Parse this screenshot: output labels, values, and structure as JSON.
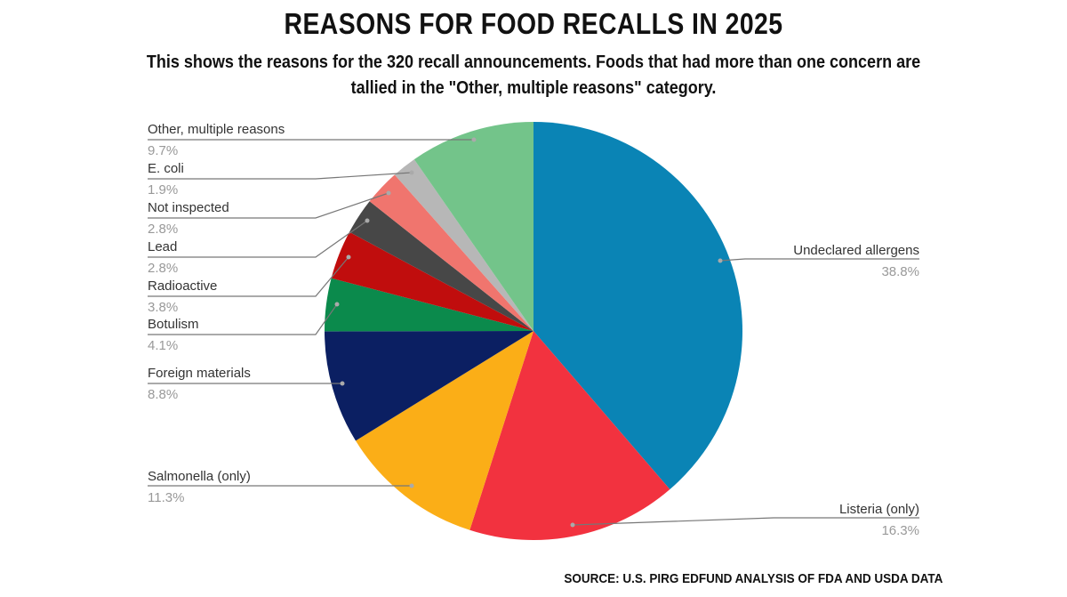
{
  "chart_data": {
    "type": "pie",
    "title": "REASONS FOR FOOD RECALLS IN 2025",
    "subtitle": "This shows the reasons for the 320 recall announcements. Foods that had more than one concern are tallied in the \"Other, multiple reasons\" category.",
    "source": "SOURCE: U.S. PIRG EDFUND ANALYSIS OF FDA AND USDA DATA",
    "start_angle": "top, clockwise",
    "slices": [
      {
        "label": "Undeclared allergens",
        "value": 38.8,
        "pct_label": "38.8%",
        "color": "#0a84b5"
      },
      {
        "label": "Listeria (only)",
        "value": 16.3,
        "pct_label": "16.3%",
        "color": "#f2323f"
      },
      {
        "label": "Salmonella (only)",
        "value": 11.3,
        "pct_label": "11.3%",
        "color": "#fbae17"
      },
      {
        "label": "Foreign materials",
        "value": 8.8,
        "pct_label": "8.8%",
        "color": "#0b1f62"
      },
      {
        "label": "Botulism",
        "value": 4.1,
        "pct_label": "4.1%",
        "color": "#0b8a4c"
      },
      {
        "label": "Radioactive",
        "value": 3.8,
        "pct_label": "3.8%",
        "color": "#c00d0d"
      },
      {
        "label": "Lead",
        "value": 2.8,
        "pct_label": "2.8%",
        "color": "#474747"
      },
      {
        "label": "Not inspected",
        "value": 2.8,
        "pct_label": "2.8%",
        "color": "#f0756e"
      },
      {
        "label": "E. coli",
        "value": 1.9,
        "pct_label": "1.9%",
        "color": "#b7b7b7"
      },
      {
        "label": "Other, multiple reasons",
        "value": 9.7,
        "pct_label": "9.7%",
        "color": "#73c48a"
      }
    ]
  }
}
